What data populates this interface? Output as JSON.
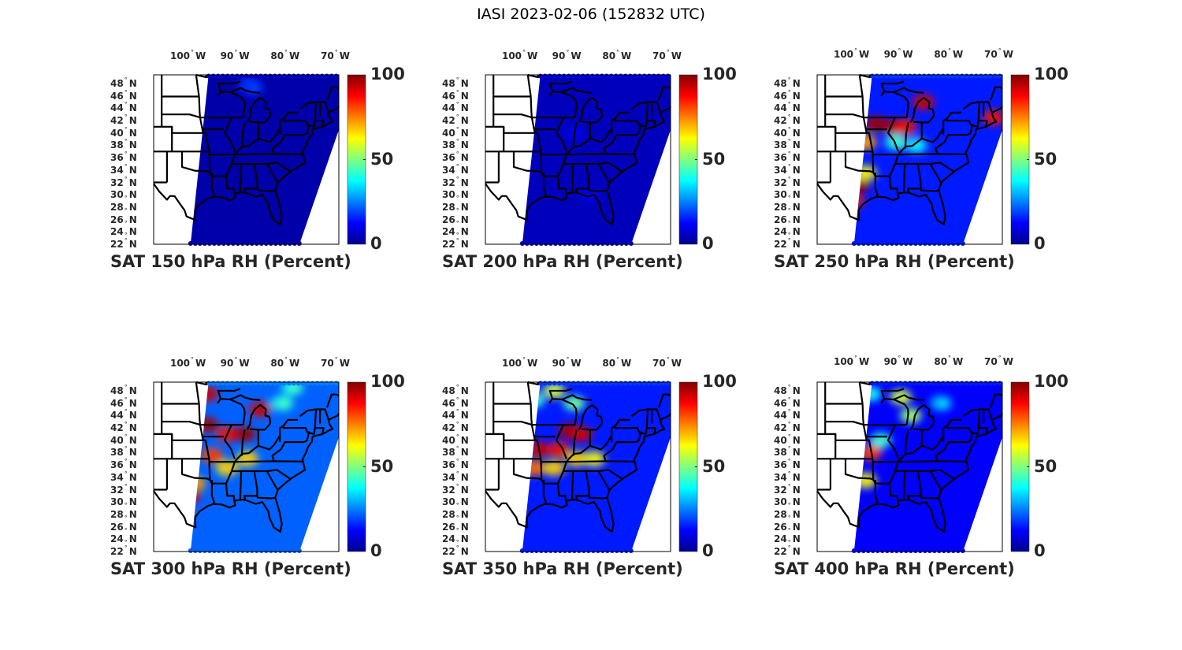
{
  "figure": {
    "title": "IASI 2023-02-06 (152832 UTC)"
  },
  "chart_data": [
    {
      "type": "heatmap",
      "title": "SAT 150 hPa RH (Percent)",
      "level_hPa": 150,
      "background_rh": 3,
      "moist_regions": [
        {
          "lon": -86.5,
          "lat": 47.7,
          "rh": 20
        },
        {
          "lon": -86.0,
          "lat": 47.3,
          "rh": 15
        }
      ]
    },
    {
      "type": "heatmap",
      "title": "SAT 200 hPa RH (Percent)",
      "level_hPa": 200,
      "background_rh": 5,
      "moist_regions": [
        {
          "lon": -88,
          "lat": 40,
          "rh": 8
        },
        {
          "lon": -85,
          "lat": 30,
          "rh": 8
        }
      ]
    },
    {
      "type": "heatmap",
      "title": "SAT 250 hPa RH (Percent)",
      "level_hPa": 250,
      "background_rh": 15,
      "moist_regions": [
        {
          "lon": -94,
          "lat": 41.5,
          "rh": 95
        },
        {
          "lon": -90.5,
          "lat": 41,
          "rh": 95
        },
        {
          "lon": -88,
          "lat": 41,
          "rh": 85
        },
        {
          "lon": -84.5,
          "lat": 45,
          "rh": 90
        },
        {
          "lon": -96,
          "lat": 38.5,
          "rh": 70
        },
        {
          "lon": -97.5,
          "lat": 31.5,
          "rh": 95
        },
        {
          "lon": -98.5,
          "lat": 29,
          "rh": 85
        },
        {
          "lon": -96,
          "lat": 33.5,
          "rh": 60
        },
        {
          "lon": -70.5,
          "lat": 42.5,
          "rh": 85
        },
        {
          "lon": -90,
          "lat": 38.5,
          "rh": 40
        },
        {
          "lon": -86,
          "lat": 38,
          "rh": 35
        }
      ]
    },
    {
      "type": "heatmap",
      "title": "SAT 300 hPa RH (Percent)",
      "level_hPa": 300,
      "background_rh": 22,
      "moist_regions": [
        {
          "lon": -95,
          "lat": 47.5,
          "rh": 90
        },
        {
          "lon": -95,
          "lat": 42.5,
          "rh": 95
        },
        {
          "lon": -98.5,
          "lat": 39,
          "rh": 95
        },
        {
          "lon": -91,
          "lat": 41,
          "rh": 85
        },
        {
          "lon": -87.5,
          "lat": 41,
          "rh": 95
        },
        {
          "lon": -84.5,
          "lat": 45,
          "rh": 90
        },
        {
          "lon": -94,
          "lat": 37.5,
          "rh": 80
        },
        {
          "lon": -87,
          "lat": 37,
          "rh": 65
        },
        {
          "lon": -91,
          "lat": 35.5,
          "rh": 65
        },
        {
          "lon": -97.5,
          "lat": 33,
          "rh": 70
        },
        {
          "lon": -98.5,
          "lat": 31,
          "rh": 90
        },
        {
          "lon": -80,
          "lat": 46,
          "rh": 40
        },
        {
          "lon": -78,
          "lat": 48.5,
          "rh": 40
        }
      ]
    },
    {
      "type": "heatmap",
      "title": "SAT 350 hPa RH (Percent)",
      "level_hPa": 350,
      "background_rh": 15,
      "moist_regions": [
        {
          "lon": -95,
          "lat": 38.5,
          "rh": 90
        },
        {
          "lon": -91,
          "lat": 38.5,
          "rh": 85
        },
        {
          "lon": -89,
          "lat": 41.5,
          "rh": 95
        },
        {
          "lon": -86.5,
          "lat": 41,
          "rh": 90
        },
        {
          "lon": -87.5,
          "lat": 37,
          "rh": 65
        },
        {
          "lon": -84,
          "lat": 37,
          "rh": 60
        },
        {
          "lon": -96,
          "lat": 35.5,
          "rh": 75
        },
        {
          "lon": -92,
          "lat": 35.5,
          "rh": 65
        },
        {
          "lon": -96,
          "lat": 46.5,
          "rh": 40
        },
        {
          "lon": -92,
          "lat": 48,
          "rh": 55
        },
        {
          "lon": -88,
          "lat": 46,
          "rh": 45
        }
      ]
    },
    {
      "type": "heatmap",
      "title": "SAT 400 hPa RH (Percent)",
      "level_hPa": 400,
      "background_rh": 12,
      "moist_regions": [
        {
          "lon": -95,
          "lat": 47.5,
          "rh": 35
        },
        {
          "lon": -89,
          "lat": 47,
          "rh": 55
        },
        {
          "lon": -87,
          "lat": 44,
          "rh": 50
        },
        {
          "lon": -93,
          "lat": 40,
          "rh": 40
        },
        {
          "lon": -95,
          "lat": 38,
          "rh": 80
        },
        {
          "lon": -96,
          "lat": 33.5,
          "rh": 60
        },
        {
          "lon": -81,
          "lat": 46,
          "rh": 30
        }
      ]
    }
  ],
  "axes": {
    "lon_ticks": [
      "100",
      "90",
      "80",
      "70"
    ],
    "lon_values": [
      -100,
      -90,
      -80,
      -70
    ],
    "lon_suffix": "W",
    "lat_ticks": [
      "48",
      "46",
      "44",
      "42",
      "40",
      "38",
      "36",
      "34",
      "32",
      "30",
      "28",
      "26",
      "24",
      "22"
    ],
    "lat_values": [
      48,
      46,
      44,
      42,
      40,
      38,
      36,
      34,
      32,
      30,
      28,
      26,
      24,
      22
    ],
    "lat_suffix": "N",
    "lon_range": [
      -105.65,
      -68.75
    ],
    "lat_range": [
      22,
      49.4
    ]
  },
  "colorbar": {
    "min": 0,
    "max": 100,
    "ticks": [
      "100",
      "50",
      "0"
    ],
    "tick_values": [
      100,
      50,
      0
    ],
    "colormap": "jet",
    "colors": [
      "#00008f",
      "#0000ff",
      "#0080ff",
      "#00ffff",
      "#80ff80",
      "#ffff00",
      "#ff8000",
      "#ff0000",
      "#800000"
    ]
  }
}
